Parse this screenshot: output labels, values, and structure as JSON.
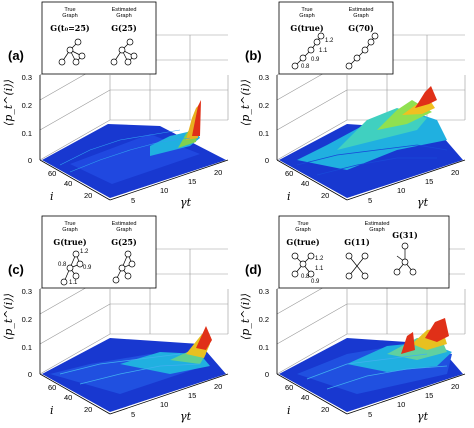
{
  "panels": [
    {
      "label": "(a)",
      "true_graph_caption": "True\nGraph",
      "estimated_graph_caption": "Estimated\nGraph",
      "true_graph_symbol": "G(t₀=25)",
      "estimated_graph_symbol": "G(25)",
      "edge_weights": []
    },
    {
      "label": "(b)",
      "true_graph_caption": "True\nGraph",
      "estimated_graph_caption": "Estimated\nGraph",
      "true_graph_symbol": "G(true)",
      "estimated_graph_symbol": "G(70)",
      "edge_weights": [
        "1.2",
        "1.1",
        "0.9",
        "0.8"
      ]
    },
    {
      "label": "(c)",
      "true_graph_caption": "True\nGraph",
      "estimated_graph_caption": "Estimated\nGraph",
      "true_graph_symbol": "G(true)",
      "estimated_graph_symbol": "G(25)",
      "edge_weights": [
        "1.2",
        "0.8",
        "0.9",
        "1.1"
      ]
    },
    {
      "label": "(d)",
      "true_graph_caption": "True\nGraph",
      "estimated_graph_caption": "Estimated\nGraph",
      "true_graph_symbol": "G(true)",
      "estimated_graph_symbol": "G(11)",
      "estimated_graph_symbol_2": "G(31)",
      "edge_weights": [
        "1.2",
        "1.1",
        "0.8",
        "0.9"
      ]
    }
  ],
  "axes": {
    "z_label": "⟨p_t^(i)⟩",
    "i_label": "i",
    "t_label": "γt",
    "z_ticks": [
      "0",
      "0.1",
      "0.2",
      "0.3"
    ],
    "i_ticks": [
      "60",
      "40",
      "20"
    ],
    "t_ticks": [
      "5",
      "10",
      "15",
      "20"
    ]
  },
  "colors": {
    "low": "#1030c8",
    "mid": "#20c0e0",
    "mid2": "#a0e040",
    "high": "#e83018",
    "frame": "#000000",
    "grid": "#bbbbbb"
  }
}
